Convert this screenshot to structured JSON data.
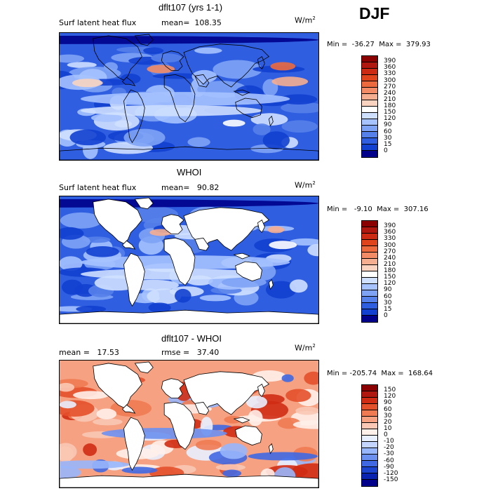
{
  "season": "DJF",
  "panels": [
    {
      "title": "dflt107 (yrs 1-1)",
      "left_label": "Surf latent heat flux",
      "right_label": "mean=  108.35",
      "units_base": "W/m",
      "units_exp": "2",
      "minmax": "Min =  -36.27  Max =  379.93",
      "colorbar": {
        "labels": [
          "390",
          "360",
          "330",
          "300",
          "270",
          "240",
          "210",
          "180",
          "150",
          "120",
          "90",
          "60",
          "30",
          "15",
          "0"
        ],
        "colors": [
          "#8b0000",
          "#b0180f",
          "#cc2a12",
          "#e0441c",
          "#ec6a3e",
          "#f38c66",
          "#f6ae90",
          "#fad4c0",
          "#ffffff",
          "#cfe0ff",
          "#a6c2ff",
          "#7ea3f5",
          "#5681ea",
          "#2f5ee0",
          "#1240d0",
          "#00008b"
        ]
      },
      "field": "full"
    },
    {
      "title": "WHOI",
      "left_label": "Surf latent heat flux",
      "right_label": "mean=   90.82",
      "units_base": "W/m",
      "units_exp": "2",
      "minmax": "Min =   -9.10  Max =  307.16",
      "colorbar": {
        "labels": [
          "390",
          "360",
          "330",
          "300",
          "270",
          "240",
          "210",
          "180",
          "150",
          "120",
          "90",
          "60",
          "30",
          "15",
          "0"
        ],
        "colors": [
          "#8b0000",
          "#b0180f",
          "#cc2a12",
          "#e0441c",
          "#ec6a3e",
          "#f38c66",
          "#f6ae90",
          "#fad4c0",
          "#ffffff",
          "#cfe0ff",
          "#a6c2ff",
          "#7ea3f5",
          "#5681ea",
          "#2f5ee0",
          "#1240d0",
          "#00008b"
        ]
      },
      "field": "ocean"
    },
    {
      "title": "dflt107 - WHOI",
      "left_label": "mean =   17.53",
      "right_label": "rmse =   37.40",
      "units_base": "W/m",
      "units_exp": "2",
      "minmax": "Min = -205.74  Max =  168.64",
      "colorbar": {
        "labels": [
          "150",
          "120",
          "90",
          "60",
          "30",
          "20",
          "10",
          "0",
          "-10",
          "-20",
          "-30",
          "-60",
          "-90",
          "-120",
          "-150"
        ],
        "colors": [
          "#8b0000",
          "#b0180f",
          "#d02c14",
          "#e4502a",
          "#f07a52",
          "#f6a282",
          "#fac8b4",
          "#fff0ea",
          "#e8f0ff",
          "#c4d6ff",
          "#98b6fb",
          "#6c90f0",
          "#4068e2",
          "#1d44cf",
          "#0a22b0",
          "#00008b"
        ]
      },
      "field": "diff"
    }
  ]
}
